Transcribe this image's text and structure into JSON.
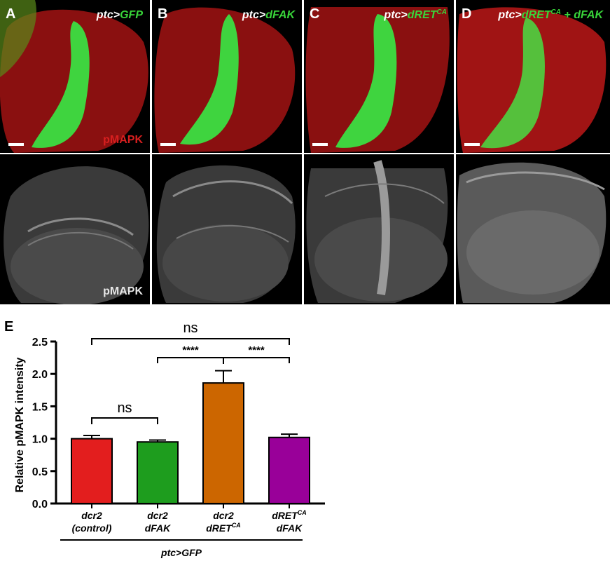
{
  "panels": [
    {
      "letter": "A",
      "label_prefix": "ptc>",
      "label_gene": "GFP",
      "label_sup": "",
      "label_suffix": "",
      "stain_top": "pMAPK",
      "stain_bottom": "pMAPK"
    },
    {
      "letter": "B",
      "label_prefix": "ptc>",
      "label_gene": "dFAK",
      "label_sup": "",
      "label_suffix": "",
      "stain_top": "",
      "stain_bottom": ""
    },
    {
      "letter": "C",
      "label_prefix": "ptc>",
      "label_gene": "dRET",
      "label_sup": "CA",
      "label_suffix": "",
      "stain_top": "",
      "stain_bottom": ""
    },
    {
      "letter": "D",
      "label_prefix": "ptc>",
      "label_gene": "dRET",
      "label_sup": "CA",
      "label_suffix": " + dFAK",
      "stain_top": "",
      "stain_bottom": ""
    }
  ],
  "chart_data": {
    "type": "bar",
    "panel_letter": "E",
    "ylabel": "Relative pMAPK intensity",
    "ylim": [
      0,
      2.5
    ],
    "yticks": [
      "0.0",
      "0.5",
      "1.0",
      "1.5",
      "2.0",
      "2.5"
    ],
    "categories": [
      {
        "line1": "dcr2",
        "line2": "(control)",
        "line2_sup": ""
      },
      {
        "line1": "dcr2",
        "line2": "dFAK",
        "line2_sup": ""
      },
      {
        "line1": "dcr2",
        "line2": "dRET",
        "line2_sup": "CA"
      },
      {
        "line1": "dRET",
        "line1_sup": "CA",
        "line2": "dFAK",
        "line2_sup": ""
      }
    ],
    "values": [
      1.0,
      0.95,
      1.86,
      1.02
    ],
    "errors": [
      0.05,
      0.03,
      0.19,
      0.05
    ],
    "colors": [
      "#e31e1e",
      "#1e9d1e",
      "#cc6600",
      "#990099"
    ],
    "group_label": "ptc>GFP",
    "significance": [
      {
        "from": 0,
        "to": 3,
        "text": "ns"
      },
      {
        "from": 1,
        "to": 3,
        "text": "****",
        "mid_split": 2
      },
      {
        "from": 0,
        "to": 1,
        "text": "ns"
      }
    ]
  }
}
